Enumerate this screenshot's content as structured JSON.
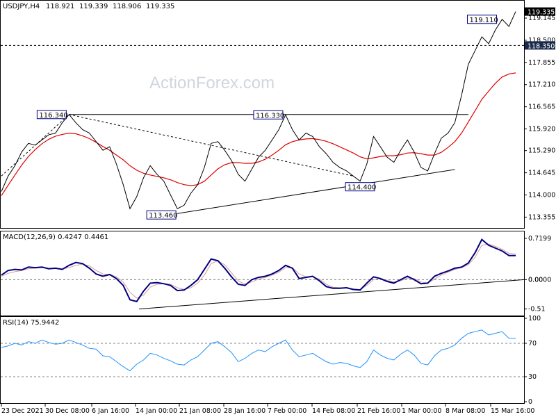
{
  "watermark": "ActionForex.com",
  "chart_data": [
    {
      "type": "line",
      "panel": "price",
      "title": "USDJPY,H4",
      "ohlc": {
        "open": "118.921",
        "high": "119.339",
        "low": "118.906",
        "close": "119.335"
      },
      "ylim": [
        113.1,
        119.55
      ],
      "yticks": [
        "119.145",
        "118.500",
        "117.855",
        "117.210",
        "116.565",
        "115.920",
        "115.290",
        "114.645",
        "114.000",
        "113.355"
      ],
      "last_price": "119.335",
      "hline_label": "118.350",
      "hline_value": 118.35,
      "annotations": [
        "116.340",
        "116.330",
        "114.400",
        "113.460",
        "119.110"
      ],
      "series": [
        {
          "values": [
            114.1,
            114.55,
            114.85,
            115.25,
            115.5,
            115.45,
            115.6,
            115.75,
            115.8,
            116.1,
            116.34,
            116.1,
            115.9,
            115.8,
            115.55,
            115.3,
            115.4,
            114.9,
            114.3,
            113.6,
            113.95,
            114.5,
            114.85,
            114.6,
            114.4,
            114.0,
            113.6,
            113.7,
            114.05,
            114.3,
            114.8,
            115.5,
            115.55,
            115.3,
            115.0,
            114.6,
            114.4,
            114.75,
            115.1,
            115.3,
            115.6,
            115.9,
            116.33,
            115.9,
            115.6,
            115.8,
            115.7,
            115.4,
            115.2,
            114.95,
            114.8,
            114.7,
            114.55,
            114.4,
            114.9,
            115.7,
            115.4,
            115.1,
            114.95,
            115.3,
            115.6,
            115.25,
            114.8,
            114.7,
            115.2,
            115.65,
            115.8,
            116.1,
            116.9,
            117.8,
            118.2,
            118.6,
            118.4,
            118.8,
            119.11,
            118.9,
            119.335
          ]
        },
        {
          "values": [
            113.98,
            114.28,
            114.58,
            114.87,
            115.12,
            115.32,
            115.49,
            115.62,
            115.71,
            115.76,
            115.8,
            115.78,
            115.72,
            115.64,
            115.53,
            115.41,
            115.3,
            115.16,
            115.02,
            114.85,
            114.72,
            114.63,
            114.58,
            114.54,
            114.5,
            114.44,
            114.36,
            114.3,
            114.27,
            114.3,
            114.4,
            114.58,
            114.76,
            114.88,
            114.94,
            114.94,
            114.92,
            114.92,
            114.96,
            115.04,
            115.16,
            115.3,
            115.46,
            115.55,
            115.6,
            115.63,
            115.64,
            115.61,
            115.56,
            115.49,
            115.4,
            115.31,
            115.22,
            115.11,
            115.05,
            115.08,
            115.12,
            115.14,
            115.14,
            115.17,
            115.22,
            115.23,
            115.2,
            115.16,
            115.16,
            115.24,
            115.38,
            115.55,
            115.8,
            116.12,
            116.45,
            116.78,
            117.02,
            117.25,
            117.43,
            117.52,
            117.55
          ]
        }
      ],
      "trendlines": [
        {
          "x": [
            0,
            10
          ],
          "y": [
            114.55,
            116.34
          ]
        },
        {
          "x": [
            10,
            52
          ],
          "y": [
            116.34,
            114.55
          ]
        },
        {
          "x": [
            26,
            67
          ],
          "y": [
            113.46,
            114.74
          ]
        },
        {
          "x": [
            10,
            69
          ],
          "y": [
            116.34,
            116.34
          ]
        }
      ]
    },
    {
      "type": "line",
      "panel": "macd",
      "title": "MACD(12,26,9) 0.4247 0.4461",
      "ylim": [
        -0.6,
        0.78
      ],
      "yticks": [
        "0.7199",
        "0.00",
        "-0.51"
      ],
      "zero_label": "0.0000",
      "series": [
        {
          "values": [
            0.08,
            0.16,
            0.18,
            0.17,
            0.22,
            0.21,
            0.22,
            0.19,
            0.2,
            0.18,
            0.25,
            0.3,
            0.28,
            0.2,
            0.1,
            0.06,
            0.09,
            0.02,
            -0.1,
            -0.35,
            -0.38,
            -0.2,
            -0.06,
            -0.05,
            -0.07,
            -0.1,
            -0.19,
            -0.18,
            -0.1,
            0.0,
            0.18,
            0.36,
            0.33,
            0.2,
            0.05,
            -0.08,
            -0.1,
            0.0,
            0.04,
            0.06,
            0.1,
            0.16,
            0.25,
            0.2,
            0.02,
            0.04,
            0.06,
            -0.02,
            -0.12,
            -0.15,
            -0.15,
            -0.14,
            -0.17,
            -0.18,
            -0.06,
            0.05,
            0.02,
            -0.03,
            -0.06,
            0.0,
            0.06,
            0.0,
            -0.07,
            -0.06,
            0.06,
            0.11,
            0.15,
            0.2,
            0.22,
            0.29,
            0.47,
            0.7,
            0.6,
            0.55,
            0.5,
            0.42,
            0.42
          ]
        },
        {
          "values": [
            0.06,
            0.11,
            0.14,
            0.16,
            0.19,
            0.2,
            0.21,
            0.2,
            0.2,
            0.19,
            0.21,
            0.25,
            0.27,
            0.24,
            0.16,
            0.1,
            0.09,
            0.05,
            -0.04,
            -0.22,
            -0.32,
            -0.27,
            -0.13,
            -0.08,
            -0.07,
            -0.08,
            -0.14,
            -0.17,
            -0.14,
            -0.06,
            0.08,
            0.28,
            0.33,
            0.26,
            0.12,
            -0.02,
            -0.08,
            -0.04,
            0.01,
            0.04,
            0.08,
            0.13,
            0.21,
            0.21,
            0.1,
            0.05,
            0.05,
            0.01,
            -0.08,
            -0.13,
            -0.14,
            -0.14,
            -0.16,
            -0.17,
            -0.1,
            0.0,
            0.02,
            -0.01,
            -0.04,
            -0.02,
            0.03,
            0.02,
            -0.04,
            -0.06,
            0.01,
            0.08,
            0.13,
            0.18,
            0.21,
            0.26,
            0.39,
            0.6,
            0.62,
            0.58,
            0.53,
            0.46,
            0.4461
          ]
        }
      ],
      "trendline": {
        "x": [
          34,
          130
        ],
        "y": [
          -0.51,
          0.0
        ]
      }
    },
    {
      "type": "line",
      "panel": "rsi",
      "title": "RSI(14) 75.9442",
      "ylim": [
        0,
        100
      ],
      "yticks": [
        "100",
        "70",
        "30",
        "0"
      ],
      "levels": [
        70,
        30
      ],
      "series": [
        {
          "values": [
            65,
            67,
            70,
            68,
            72,
            70,
            74,
            71,
            69,
            70,
            74,
            71,
            68,
            64,
            63,
            55,
            54,
            48,
            42,
            37,
            45,
            50,
            58,
            56,
            52,
            49,
            45,
            44,
            50,
            54,
            62,
            70,
            72,
            66,
            59,
            48,
            52,
            58,
            62,
            60,
            66,
            70,
            74,
            62,
            54,
            56,
            58,
            53,
            48,
            45,
            47,
            46,
            43,
            41,
            48,
            62,
            56,
            52,
            50,
            57,
            62,
            56,
            46,
            44,
            55,
            62,
            64,
            68,
            76,
            82,
            84,
            86,
            80,
            82,
            84,
            76,
            75.9442
          ]
        }
      ]
    }
  ],
  "x_labels": [
    "23 Dec 2021",
    "30 Dec 08:00",
    "6 Jan 16:00",
    "14 Jan 00:00",
    "21 Jan 08:00",
    "28 Jan 16:00",
    "7 Feb 00:00",
    "14 Feb 08:00",
    "21 Feb 16:00",
    "1 Mar 00:00",
    "8 Mar 08:00",
    "15 Mar 16:00"
  ],
  "colors": {
    "price": "#000000",
    "ma": "#e00000",
    "macd": "#00007f",
    "signal": "#d89a9a",
    "rsi": "#1e90ff",
    "label_bg": "#ffffff",
    "label_border": "#000080",
    "last_price_bg": "#000000",
    "grid": "#808080"
  }
}
